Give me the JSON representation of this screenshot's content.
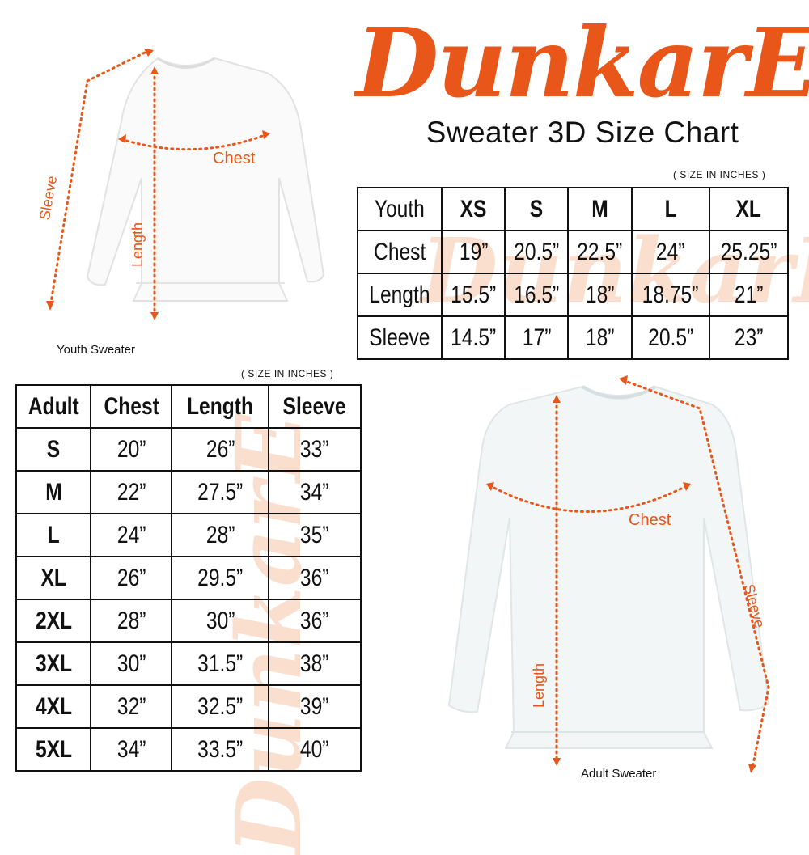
{
  "brand": {
    "logo_text": "DunkarE",
    "color": "#E8561A"
  },
  "title": "Sweater 3D Size Chart",
  "youth": {
    "unit_note": "( SIZE IN INCHES )",
    "header": [
      "Youth",
      "XS",
      "S",
      "M",
      "L",
      "XL"
    ],
    "rows": [
      [
        "Chest",
        "19”",
        "20.5”",
        "22.5”",
        "24”",
        "25.25”"
      ],
      [
        "Length",
        "15.5”",
        "16.5”",
        "18”",
        "18.75”",
        "21”"
      ],
      [
        "Sleeve",
        "14.5”",
        "17”",
        "18”",
        "20.5”",
        "23”"
      ]
    ],
    "caption": "Youth Sweater",
    "labels": {
      "chest": "Chest",
      "length": "Length",
      "sleeve": "Sleeve"
    }
  },
  "adult": {
    "unit_note": "( SIZE IN INCHES )",
    "header": [
      "Adult",
      "Chest",
      "Length",
      "Sleeve"
    ],
    "rows": [
      [
        "S",
        "20”",
        "26”",
        "33”"
      ],
      [
        "M",
        "22”",
        "27.5”",
        "34”"
      ],
      [
        "L",
        "24”",
        "28”",
        "35”"
      ],
      [
        "XL",
        "26”",
        "29.5”",
        "36”"
      ],
      [
        "2XL",
        "28”",
        "30”",
        "36”"
      ],
      [
        "3XL",
        "30”",
        "31.5”",
        "38”"
      ],
      [
        "4XL",
        "32”",
        "32.5”",
        "39”"
      ],
      [
        "5XL",
        "34”",
        "33.5”",
        "40”"
      ]
    ],
    "caption": "Adult Sweater",
    "labels": {
      "chest": "Chest",
      "length": "Length",
      "sleeve": "Sleeve"
    }
  }
}
